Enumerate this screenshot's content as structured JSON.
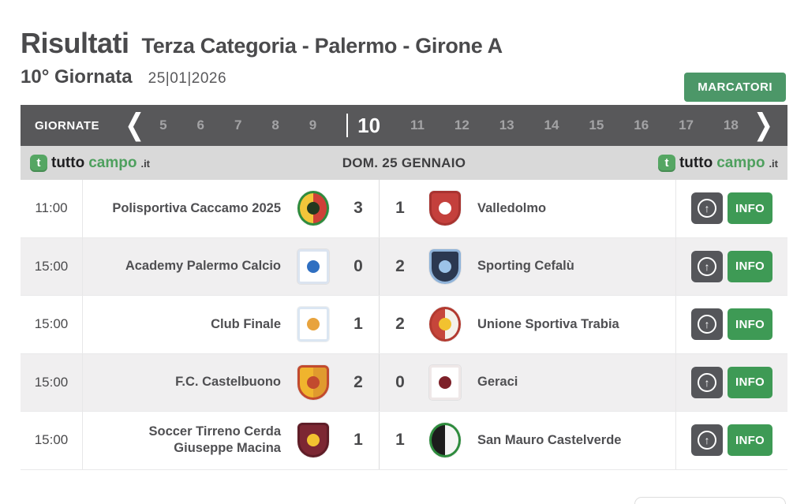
{
  "colors": {
    "accent-green": "#4c9768",
    "info-green": "#3e9a55",
    "bar-dark": "#58585a",
    "bar-light": "#d9d9d9",
    "text-dark": "#4a4a4c",
    "row-alt": "#f0eff0",
    "logo-green": "#55a663"
  },
  "icons": {
    "prev": "❮",
    "next": "❯",
    "up_arrow": "↑",
    "brand_letter": "t"
  },
  "header": {
    "title": "Risultati",
    "subtitle": "Terza Categoria - Palermo - Girone A",
    "round": "10° Giornata",
    "date": "25|01|2026",
    "marcatori_label": "MARCATORI"
  },
  "rounds_bar": {
    "label": "GIORNATE",
    "rounds": [
      "5",
      "6",
      "7",
      "8",
      "9",
      "10",
      "11",
      "12",
      "13",
      "14",
      "15",
      "16",
      "17",
      "18"
    ],
    "active_round": "10"
  },
  "day_bar": {
    "date_label": "DOM. 25 GENNAIO",
    "brand": {
      "tutto": "tutto",
      "campo": "campo",
      "tld": ".it"
    }
  },
  "actions": {
    "info_label": "INFO"
  },
  "matches": [
    {
      "time": "11:00",
      "home": {
        "name": "Polisportiva Caccamo 2025",
        "score": "3",
        "crest": {
          "shape": "oval",
          "primary": "#f3c53a",
          "secondary": "#cf4038",
          "ring": "#2e8b3d",
          "core": "#24381f"
        }
      },
      "away": {
        "name": "Valledolmo",
        "score": "1",
        "crest": {
          "shape": "shield",
          "primary": "#c4403c",
          "secondary": "#c4403c",
          "ring": "#a83330",
          "core": "#ffffff"
        }
      }
    },
    {
      "time": "15:00",
      "home": {
        "name": "Academy Palermo Calcio",
        "score": "0",
        "crest": {
          "shape": "square",
          "primary": "#ffffff",
          "secondary": "#ffffff",
          "ring": "#dbe4f0",
          "core": "#2f6fc1"
        }
      },
      "away": {
        "name": "Sporting Cefalù",
        "score": "2",
        "crest": {
          "shape": "shield",
          "primary": "#2b3850",
          "secondary": "#2b3850",
          "ring": "#8fb3d9",
          "core": "#9cc3e8"
        }
      }
    },
    {
      "time": "15:00",
      "home": {
        "name": "Club Finale",
        "score": "1",
        "crest": {
          "shape": "square",
          "primary": "#ffffff",
          "secondary": "#ffffff",
          "ring": "#dbe6f2",
          "core": "#e8a33d"
        }
      },
      "away": {
        "name": "Unione Sportiva Trabia",
        "score": "2",
        "crest": {
          "shape": "circle",
          "primary": "#c6453a",
          "secondary": "#f4f1ea",
          "ring": "#b23a30",
          "core": "#f2c230"
        }
      }
    },
    {
      "time": "15:00",
      "home": {
        "name": "F.C. Castelbuono",
        "score": "2",
        "crest": {
          "shape": "shield",
          "primary": "#f0b42d",
          "secondary": "#e09a2e",
          "ring": "#c24a2e",
          "core": "#c24a2e"
        }
      },
      "away": {
        "name": "Geraci",
        "score": "0",
        "crest": {
          "shape": "square",
          "primary": "#ffffff",
          "secondary": "#ffffff",
          "ring": "#efe8e8",
          "core": "#7d2129"
        }
      }
    },
    {
      "time": "15:00",
      "home": {
        "name": "Soccer Tirreno Cerda Giuseppe Macina",
        "score": "1",
        "crest": {
          "shape": "shield",
          "primary": "#7c2733",
          "secondary": "#7c2733",
          "ring": "#5f1d27",
          "core": "#f2c230"
        }
      },
      "away": {
        "name": "San Mauro Castelverde",
        "score": "1",
        "crest": {
          "shape": "circle",
          "primary": "#1c1c1c",
          "secondary": "#f5f5f5",
          "ring": "#2e8b3d",
          "core": ""
        }
      }
    }
  ]
}
